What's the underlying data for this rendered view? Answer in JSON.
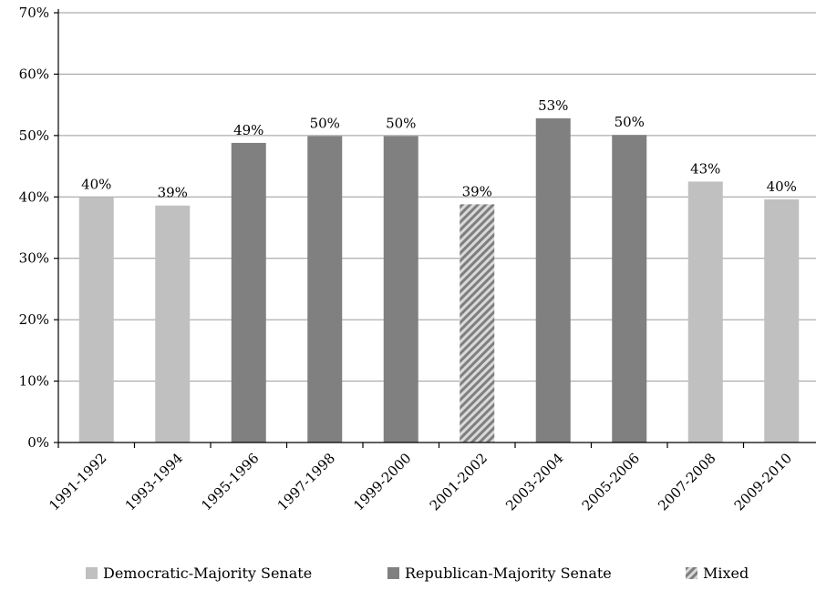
{
  "chart_data": {
    "type": "bar",
    "title": "",
    "xlabel": "",
    "ylabel": "",
    "ylim": [
      0,
      70
    ],
    "yticks": [
      0,
      10,
      20,
      30,
      40,
      50,
      60,
      70
    ],
    "ytick_labels": [
      "0%",
      "10%",
      "20%",
      "30%",
      "40%",
      "50%",
      "60%",
      "70%"
    ],
    "grid": true,
    "legend_position": "bottom",
    "categories": [
      "1991-1992",
      "1993-1994",
      "1995-1996",
      "1997-1998",
      "1999-2000",
      "2001-2002",
      "2003-2004",
      "2005-2006",
      "2007-2008",
      "2009-2010"
    ],
    "values": [
      40,
      38.6,
      48.8,
      49.9,
      49.9,
      38.8,
      52.8,
      50.1,
      42.5,
      39.6
    ],
    "data_labels": [
      "40%",
      "39%",
      "49%",
      "50%",
      "50%",
      "39%",
      "53%",
      "50%",
      "43%",
      "40%"
    ],
    "groups": [
      "democratic",
      "democratic",
      "republican",
      "republican",
      "republican",
      "mixed",
      "republican",
      "republican",
      "democratic",
      "democratic"
    ],
    "series": [
      {
        "key": "democratic",
        "name": "Democratic-Majority Senate",
        "color": "#c0c0c0",
        "pattern": "solid"
      },
      {
        "key": "republican",
        "name": "Republican-Majority Senate",
        "color": "#808080",
        "pattern": "solid"
      },
      {
        "key": "mixed",
        "name": "Mixed",
        "color": "#8c8c8c",
        "pattern": "hatched"
      }
    ]
  }
}
